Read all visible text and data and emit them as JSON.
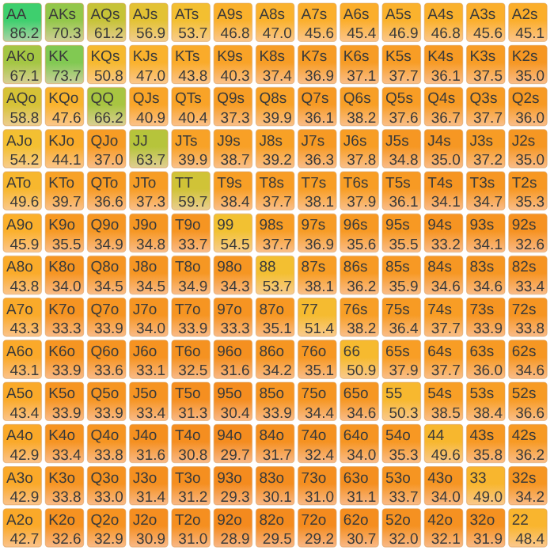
{
  "chart_data": {
    "type": "heatmap",
    "categories": [
      null,
      null,
      null,
      null,
      null,
      null,
      null,
      null,
      null,
      null,
      null,
      null,
      null
    ],
    "y_categories": [
      null,
      null,
      null,
      null,
      null,
      null,
      null,
      null,
      null,
      null,
      null,
      null,
      null
    ],
    "cells": [
      [
        86.2,
        70.3,
        61.2,
        56.9,
        53.7,
        46.8,
        47.0,
        45.6,
        45.4,
        46.9,
        46.8,
        45.6,
        45.1
      ],
      [
        67.1,
        73.7,
        50.8,
        47.0,
        43.8,
        40.3,
        37.4,
        36.9,
        37.1,
        37.7,
        36.1,
        37.5,
        35.0
      ],
      [
        58.8,
        47.6,
        66.2,
        40.9,
        40.4,
        37.3,
        39.9,
        36.1,
        38.2,
        37.6,
        36.7,
        37.7,
        36.0
      ],
      [
        54.2,
        44.1,
        37.0,
        63.7,
        39.9,
        38.7,
        39.2,
        36.3,
        37.8,
        34.8,
        35.0,
        37.2,
        35.0
      ],
      [
        49.6,
        39.7,
        36.6,
        37.3,
        59.7,
        38.4,
        37.7,
        38.1,
        37.9,
        36.1,
        34.1,
        34.7,
        35.3
      ],
      [
        45.9,
        35.5,
        34.9,
        34.8,
        33.7,
        54.5,
        37.7,
        36.9,
        35.6,
        35.5,
        33.2,
        34.1,
        32.6
      ],
      [
        43.8,
        34.0,
        34.5,
        34.5,
        34.9,
        34.3,
        53.7,
        38.1,
        36.2,
        35.9,
        34.6,
        34.6,
        33.4
      ],
      [
        43.3,
        33.3,
        33.9,
        34.0,
        33.9,
        33.3,
        35.1,
        51.4,
        38.2,
        36.4,
        37.7,
        33.9,
        33.8
      ],
      [
        43.1,
        33.9,
        33.6,
        33.1,
        32.5,
        31.6,
        34.2,
        35.1,
        50.9,
        37.9,
        37.7,
        36.0,
        34.6
      ],
      [
        43.4,
        33.9,
        33.9,
        33.4,
        31.3,
        30.4,
        33.9,
        34.4,
        34.6,
        50.3,
        38.5,
        38.4,
        36.6
      ],
      [
        42.9,
        33.4,
        33.8,
        31.6,
        30.8,
        29.7,
        31.7,
        32.4,
        34.0,
        35.3,
        49.6,
        35.8,
        36.2
      ],
      [
        42.9,
        33.8,
        33.0,
        31.4,
        31.2,
        29.3,
        30.1,
        31.0,
        31.1,
        33.7,
        34.0,
        49.0,
        34.2
      ],
      [
        42.7,
        32.6,
        32.9,
        30.9,
        31.0,
        28.9,
        29.5,
        29.2,
        30.7,
        32.0,
        32.1,
        31.9,
        48.4
      ]
    ],
    "cell_labels": [
      [
        "86.2",
        "70.3",
        "61.2",
        "56.9",
        "53.7",
        "46.8",
        "47.0",
        "45.6",
        "45.4",
        "46.9",
        "46.8",
        "45.6",
        "45.1"
      ],
      [
        "67.1",
        "73.7",
        "50.8",
        "47.0",
        "43.8",
        "40.3",
        "37.4",
        "36.9",
        "37.1",
        "37.7",
        "36.1",
        "37.5",
        "35.0"
      ],
      [
        "58.8",
        "47.6",
        "66.2",
        "40.9",
        "40.4",
        "37.3",
        "39.9",
        "36.1",
        "38.2",
        "37.6",
        "36.7",
        "37.7",
        "36.0"
      ],
      [
        "54.2",
        "44.1",
        "37.0",
        "63.7",
        "39.9",
        "38.7",
        "39.2",
        "36.3",
        "37.8",
        "34.8",
        "35.0",
        "37.2",
        "35.0"
      ],
      [
        "49.6",
        "39.7",
        "36.6",
        "37.3",
        "59.7",
        "38.4",
        "37.7",
        "38.1",
        "37.9",
        "36.1",
        "34.1",
        "34.7",
        "35.3"
      ],
      [
        "45.9",
        "35.5",
        "34.9",
        "34.8",
        "33.7",
        "54.5",
        "37.7",
        "36.9",
        "35.6",
        "35.5",
        "33.2",
        "34.1",
        "32.6"
      ],
      [
        "43.8",
        "34.0",
        "34.5",
        "34.5",
        "34.9",
        "34.3",
        "53.7",
        "38.1",
        "36.2",
        "35.9",
        "34.6",
        "34.6",
        "33.4"
      ],
      [
        "43.3",
        "33.3",
        "33.9",
        "34.0",
        "33.9",
        "33.3",
        "35.1",
        "51.4",
        "38.2",
        "36.4",
        "37.7",
        "33.9",
        "33.8"
      ],
      [
        "43.1",
        "33.9",
        "33.6",
        "33.1",
        "32.5",
        "31.6",
        "34.2",
        "35.1",
        "50.9",
        "37.9",
        "37.7",
        "36.0",
        "34.6"
      ],
      [
        "43.4",
        "33.9",
        "33.9",
        "33.4",
        "31.3",
        "30.4",
        "33.9",
        "34.4",
        "34.6",
        "50.3",
        "38.5",
        "38.4",
        "36.6"
      ],
      [
        "42.9",
        "33.4",
        "33.8",
        "31.6",
        "30.8",
        "29.7",
        "31.7",
        "32.4",
        "34.0",
        "35.3",
        "49.6",
        "35.8",
        "36.2"
      ],
      [
        "42.9",
        "33.8",
        "33.0",
        "31.4",
        "31.2",
        "29.3",
        "30.1",
        "31.0",
        "31.1",
        "33.7",
        "34.0",
        "49.0",
        "34.2"
      ],
      [
        "42.7",
        "32.6",
        "32.9",
        "30.9",
        "31.0",
        "28.9",
        "29.5",
        "29.2",
        "30.7",
        "32.0",
        "32.1",
        "31.9",
        "48.4"
      ]
    ],
    "annotations": [
      "AA",
      "AKs",
      "AQs",
      "AJs",
      "ATs",
      "A9s",
      "A8s",
      "A7s",
      "A6s",
      "A5s",
      "A4s",
      "A3s",
      "A2s",
      "AKo",
      "KK",
      "KQs",
      "KJs",
      "KTs",
      "K9s",
      "K8s",
      "K7s",
      "K6s",
      "K5s",
      "K4s",
      "K3s",
      "K2s",
      "AQo",
      "KQo",
      "QQ",
      "QJs",
      "QTs",
      "Q9s",
      "Q8s",
      "Q7s",
      "Q6s",
      "Q5s",
      "Q4s",
      "Q3s",
      "Q2s",
      "AJo",
      "KJo",
      "QJo",
      "JJ",
      "JTs",
      "J9s",
      "J8s",
      "J7s",
      "J6s",
      "J5s",
      "J4s",
      "J3s",
      "J2s",
      "ATo",
      "KTo",
      "QTo",
      "JTo",
      "TT",
      "T9s",
      "T8s",
      "T7s",
      "T6s",
      "T5s",
      "T4s",
      "T3s",
      "T2s",
      "A9o",
      "K9o",
      "Q9o",
      "J9o",
      "T9o",
      "99",
      "98s",
      "97s",
      "96s",
      "95s",
      "94s",
      "93s",
      "92s",
      "A8o",
      "K8o",
      "Q8o",
      "J8o",
      "T8o",
      "98o",
      "88",
      "87s",
      "86s",
      "85s",
      "84s",
      "83s",
      "82s",
      "A7o",
      "K7o",
      "Q7o",
      "J7o",
      "T7o",
      "97o",
      "87o",
      "77",
      "76s",
      "75s",
      "74s",
      "73s",
      "72s",
      "A6o",
      "K6o",
      "Q6o",
      "J6o",
      "T6o",
      "96o",
      "86o",
      "76o",
      "66",
      "65s",
      "64s",
      "63s",
      "62s",
      "A5o",
      "K5o",
      "Q5o",
      "J5o",
      "T5o",
      "95o",
      "85o",
      "75o",
      "65o",
      "55",
      "54s",
      "53s",
      "52s",
      "A4o",
      "K4o",
      "Q4o",
      "J4o",
      "T4o",
      "94o",
      "84o",
      "74o",
      "64o",
      "54o",
      "44",
      "43s",
      "42s",
      "A3o",
      "K3o",
      "Q3o",
      "J3o",
      "T3o",
      "93o",
      "83o",
      "73o",
      "63o",
      "53o",
      "43o",
      "33",
      "32s",
      "A2o",
      "K2o",
      "Q2o",
      "J2o",
      "T2o",
      "92o",
      "82o",
      "72o",
      "62o",
      "52o",
      "42o",
      "32o",
      "22"
    ]
  }
}
